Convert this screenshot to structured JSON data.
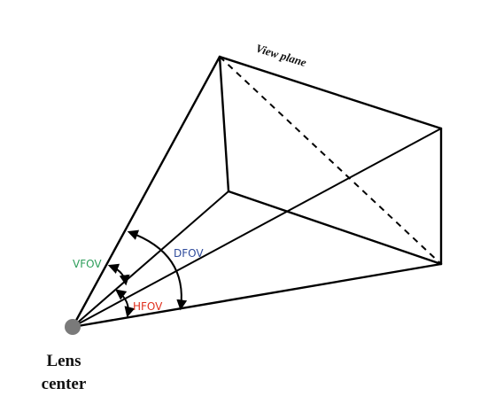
{
  "labels": {
    "view_plane": "View plane",
    "lens_line1": "Lens",
    "lens_line2": "center",
    "vfov": "VFOV",
    "dfov": "DFOV",
    "hfov": "HFOV"
  },
  "colors": {
    "vfov": "#2e9e5b",
    "dfov": "#2f4b9c",
    "hfov": "#e0301e",
    "lens": "#7a7a7a",
    "lines": "#000000"
  }
}
